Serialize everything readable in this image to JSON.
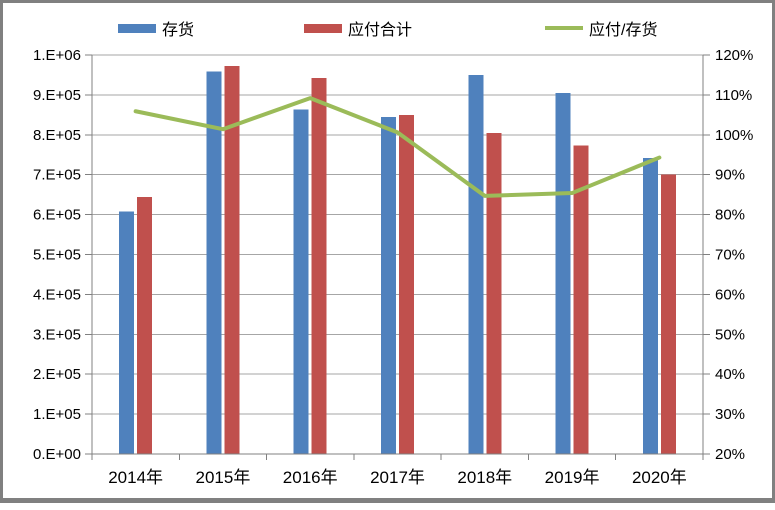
{
  "chart_data": {
    "type": "bar",
    "subtype": "bar-line-combo",
    "title": "",
    "categories": [
      "2014年",
      "2015年",
      "2016年",
      "2017年",
      "2018年",
      "2019年",
      "2020年"
    ],
    "series": [
      {
        "id": "inventory",
        "name": "存货",
        "type": "bar",
        "axis": "left",
        "color": "#4F81BD",
        "values": [
          608000,
          959000,
          863000,
          845000,
          950000,
          905000,
          742000
        ]
      },
      {
        "id": "payables-total",
        "name": "应付合计",
        "type": "bar",
        "axis": "left",
        "color": "#C0504D",
        "values": [
          644000,
          972000,
          942000,
          850000,
          805000,
          773000,
          700000
        ]
      },
      {
        "id": "payables-to-inventory-ratio",
        "name": "应付/存货",
        "type": "line",
        "axis": "right",
        "color": "#9BBB59",
        "values": [
          1.059,
          1.014,
          1.092,
          1.006,
          0.847,
          0.854,
          0.943
        ]
      }
    ],
    "left_axis": {
      "min": 0,
      "max": 1000000,
      "tick_labels": [
        "1.E+06",
        "9.E+05",
        "8.E+05",
        "7.E+05",
        "6.E+05",
        "5.E+05",
        "4.E+05",
        "3.E+05",
        "2.E+05",
        "1.E+05",
        "0.E+00"
      ]
    },
    "right_axis": {
      "min": 0.2,
      "max": 1.2,
      "tick_labels": [
        "120%",
        "110%",
        "100%",
        "90%",
        "80%",
        "70%",
        "60%",
        "50%",
        "40%",
        "30%",
        "20%"
      ]
    },
    "grid": true,
    "legend_position": "top"
  },
  "colors": {
    "gridline": "#A6A6A6",
    "axis_line": "#808080",
    "frame_border": "#808080",
    "background": "#FFFFFF",
    "text": "#000000"
  }
}
